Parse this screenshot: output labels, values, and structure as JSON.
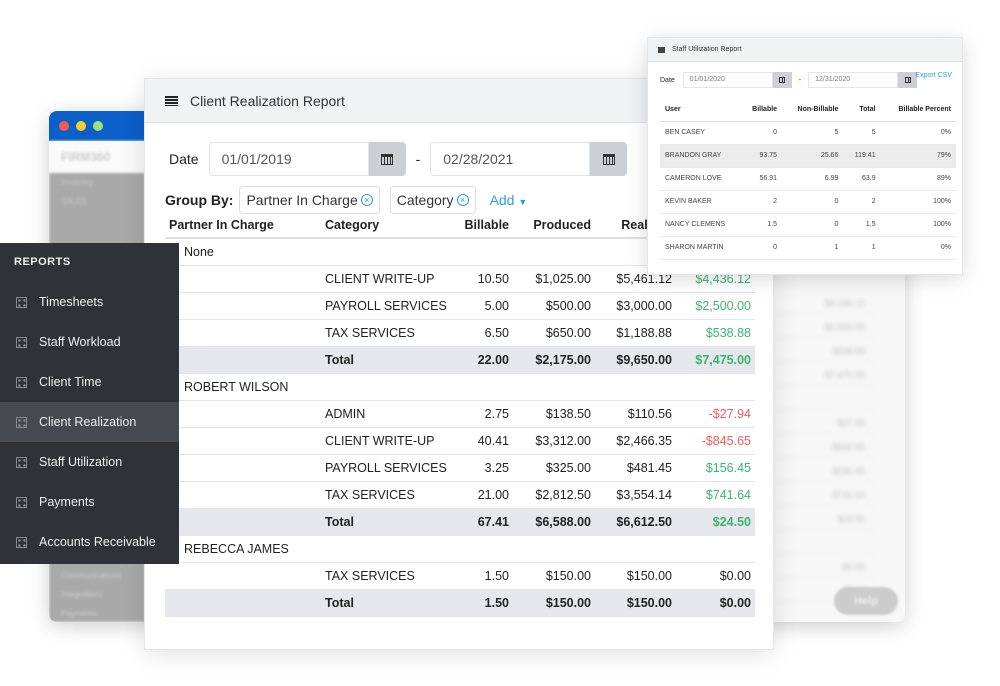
{
  "background_window": {
    "logo": "FIRM360",
    "sidebar_items": [
      "Invoicing",
      "SALES",
      "Communications",
      "Integrations",
      "Payments"
    ],
    "help_label": "Help",
    "dots": [
      "#f25c4a",
      "#f4cf2c",
      "#9be07a"
    ]
  },
  "sidebar": {
    "heading": "REPORTS",
    "items": [
      {
        "label": "Timesheets"
      },
      {
        "label": "Staff Workload"
      },
      {
        "label": "Client Time"
      },
      {
        "label": "Client Realization",
        "active": true
      },
      {
        "label": "Staff Utilization"
      },
      {
        "label": "Payments"
      },
      {
        "label": "Accounts Receivable"
      }
    ]
  },
  "report": {
    "title": "Client Realization Report",
    "date_label": "Date",
    "date_from": "01/01/2019",
    "date_sep": "-",
    "date_to": "02/28/2021",
    "group_by_label": "Group By:",
    "group_chips": [
      "Partner In Charge",
      "Category"
    ],
    "add_label": "Add",
    "columns": [
      "Partner In Charge",
      "Category",
      "Billable",
      "Produced",
      "Realized",
      ""
    ],
    "groups": [
      {
        "name": "None",
        "rows": [
          [
            "CLIENT WRITE-UP",
            "10.50",
            "$1,025.00",
            "$5,461.12",
            "$4,436.12"
          ],
          [
            "PAYROLL SERVICES",
            "5.00",
            "$500.00",
            "$3,000.00",
            "$2,500.00"
          ],
          [
            "TAX SERVICES",
            "6.50",
            "$650.00",
            "$1,188.88",
            "$538.88"
          ]
        ],
        "total": [
          "Total",
          "22.00",
          "$2,175.00",
          "$9,650.00",
          "$7,475.00"
        ]
      },
      {
        "name": "ROBERT WILSON",
        "rows": [
          [
            "ADMIN",
            "2.75",
            "$138.50",
            "$110.56",
            "-$27.94"
          ],
          [
            "CLIENT WRITE-UP",
            "40.41",
            "$3,312.00",
            "$2,466.35",
            "-$845.65"
          ],
          [
            "PAYROLL SERVICES",
            "3.25",
            "$325.00",
            "$481.45",
            "$156.45"
          ],
          [
            "TAX SERVICES",
            "21.00",
            "$2,812.50",
            "$3,554.14",
            "$741.64"
          ]
        ],
        "total": [
          "Total",
          "67.41",
          "$6,588.00",
          "$6,612.50",
          "$24.50"
        ]
      },
      {
        "name": "REBECCA JAMES",
        "rows": [
          [
            "TAX SERVICES",
            "1.50",
            "$150.00",
            "$150.00",
            "$0.00"
          ]
        ],
        "total": [
          "Total",
          "1.50",
          "$150.00",
          "$150.00",
          "$0.00"
        ]
      }
    ]
  },
  "staff_report": {
    "title": "Staff Utilization Report",
    "date_label": "Date",
    "date_from": "01/01/2020",
    "date_sep": "-",
    "date_to": "12/31/2020",
    "export_label": "Export CSV",
    "columns": [
      "User",
      "Billable",
      "Non-Billable",
      "Total",
      "Billable Percent"
    ],
    "rows": [
      [
        "BEN CASEY",
        "0",
        "5",
        "5",
        "0%"
      ],
      [
        "BRANDON GRAY",
        "93.75",
        "25.66",
        "119.41",
        "79%"
      ],
      [
        "CAMERON LOVE",
        "56.91",
        "6.99",
        "63.9",
        "89%"
      ],
      [
        "KEVIN BAKER",
        "2",
        "0",
        "2",
        "100%"
      ],
      [
        "NANCY CLEMENS",
        "1.5",
        "0",
        "1.5",
        "100%"
      ],
      [
        "SHARON MARTIN",
        "0",
        "1",
        "1",
        "0%"
      ]
    ],
    "highlight_row": 1
  },
  "colors": {
    "positive": "#3cb46e",
    "negative": "#ef5b5b",
    "accent": "#2aa1dc",
    "titlebar": "#0a5fc9"
  }
}
